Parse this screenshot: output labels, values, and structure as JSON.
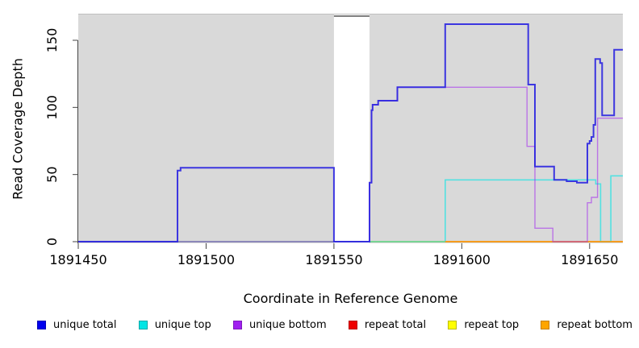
{
  "figure": {
    "plot_bg_color": "#d9d9d9",
    "top_edge_color": "#bfbfbf",
    "axis_color": "#444444",
    "gap_band": {
      "x_start": 1891550,
      "x_end": 1891563.9,
      "color": "#ffffff"
    },
    "clip_bar": {
      "x_start": 1891550,
      "x_end": 1891563.9,
      "value": 168,
      "color": "#7f7f7f"
    }
  },
  "chart_data": {
    "type": "line",
    "title": "",
    "xlabel": "Coordinate in Reference Genome",
    "ylabel": "Read Coverage Depth",
    "xlim": [
      1891450,
      1891663
    ],
    "ylim": [
      -1,
      170
    ],
    "x_ticks": [
      1891450,
      1891500,
      1891550,
      1891600,
      1891650
    ],
    "y_ticks": [
      0,
      50,
      100,
      150
    ],
    "grid": false,
    "legend_position": "bottom",
    "interpolation": "step-after",
    "series": [
      {
        "name": "repeat total",
        "color": "#dd0000",
        "width": 1.2,
        "opacity": 1,
        "points": [
          [
            1891450,
            0
          ]
        ]
      },
      {
        "name": "repeat top",
        "color": "#e6e600",
        "width": 1.2,
        "opacity": 1,
        "points": [
          [
            1891450,
            0
          ]
        ]
      },
      {
        "name": "unique top",
        "color": "#00e5e5",
        "width": 1.6,
        "opacity": 0.62,
        "points": [
          [
            1891450,
            0
          ],
          [
            1891593.5,
            46
          ],
          [
            1891652.4,
            43
          ],
          [
            1891654.3,
            0
          ],
          [
            1891658.3,
            49
          ]
        ]
      },
      {
        "name": "repeat bottom",
        "color": "#ff9500",
        "width": 1.6,
        "opacity": 1,
        "points": [
          [
            1891593.5,
            0
          ]
        ]
      },
      {
        "name": "unique bottom",
        "color": "#a020f0",
        "width": 1.4,
        "opacity": 0.55,
        "points": [
          [
            1891450,
            0
          ],
          [
            1891563.9,
            44
          ],
          [
            1891564.7,
            98
          ],
          [
            1891565.1,
            102
          ],
          [
            1891567.3,
            105
          ],
          [
            1891574.8,
            115
          ],
          [
            1891625.5,
            71
          ],
          [
            1891628.6,
            10
          ],
          [
            1891635.6,
            0
          ],
          [
            1891649.1,
            29
          ],
          [
            1891650.7,
            33
          ],
          [
            1891653.1,
            92
          ]
        ]
      },
      {
        "name": "unique total",
        "color": "#2a23e0",
        "width": 2,
        "opacity": 0.9,
        "points": [
          [
            1891450,
            0
          ],
          [
            1891488.8,
            53
          ],
          [
            1891490,
            55
          ],
          [
            1891550,
            0
          ],
          [
            1891563.9,
            44
          ],
          [
            1891564.7,
            98
          ],
          [
            1891565.1,
            102
          ],
          [
            1891567.3,
            105
          ],
          [
            1891574.8,
            115
          ],
          [
            1891593.5,
            162
          ],
          [
            1891626,
            117
          ],
          [
            1891628.6,
            56
          ],
          [
            1891636.1,
            46
          ],
          [
            1891641,
            45
          ],
          [
            1891645,
            44
          ],
          [
            1891649.1,
            73
          ],
          [
            1891650,
            75
          ],
          [
            1891650.7,
            78
          ],
          [
            1891651.5,
            87
          ],
          [
            1891652.2,
            136
          ],
          [
            1891654.1,
            133
          ],
          [
            1891654.9,
            94
          ],
          [
            1891659.6,
            143
          ]
        ]
      }
    ]
  },
  "legend": {
    "items": [
      {
        "label": "unique total",
        "color": "#0000ee",
        "border": "#0000b8"
      },
      {
        "label": "unique top",
        "color": "#00e5e5",
        "border": "#00a8a8"
      },
      {
        "label": "unique bottom",
        "color": "#a020f0",
        "border": "#7d19bc"
      },
      {
        "label": "repeat total",
        "color": "#ee0000",
        "border": "#b80000"
      },
      {
        "label": "repeat top",
        "color": "#ffff00",
        "border": "#bcbc00"
      },
      {
        "label": "repeat bottom",
        "color": "#ffa500",
        "border": "#c67f00"
      }
    ]
  }
}
